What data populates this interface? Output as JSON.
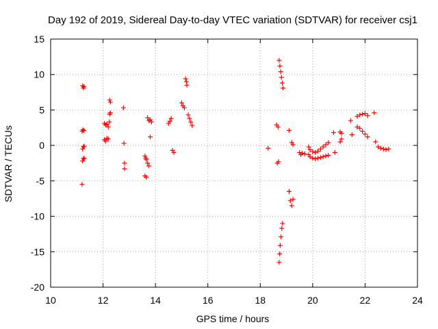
{
  "chart_data": {
    "type": "scatter",
    "title": "Day 192 of 2019, Sidereal Day-to-day VTEC variation (SDTVAR) for receiver csj1",
    "xlabel": "GPS time / hours",
    "ylabel": "SDTVAR / TECUs",
    "xlim": [
      10,
      24
    ],
    "ylim": [
      -20,
      15
    ],
    "xticks": [
      10,
      12,
      14,
      16,
      18,
      20,
      22,
      24
    ],
    "yticks": [
      -20,
      -15,
      -10,
      -5,
      0,
      5,
      10,
      15
    ],
    "xtick_labels": [
      "10",
      "12",
      "14",
      "16",
      "18",
      "20",
      "22",
      "24"
    ],
    "ytick_labels": [
      "-20",
      "-15",
      "-10",
      "-5",
      "0",
      "5",
      "10",
      "15"
    ],
    "grid": true,
    "marker": "plus",
    "marker_color": "#ff0000",
    "series": [
      {
        "name": "csj1",
        "points": [
          [
            11.22,
            8.4
          ],
          [
            11.25,
            8.1
          ],
          [
            11.27,
            8.3
          ],
          [
            11.2,
            2.0
          ],
          [
            11.23,
            2.2
          ],
          [
            11.27,
            2.1
          ],
          [
            11.22,
            -0.5
          ],
          [
            11.25,
            -0.2
          ],
          [
            11.28,
            -0.1
          ],
          [
            11.22,
            -2.2
          ],
          [
            11.25,
            -1.9
          ],
          [
            11.28,
            -1.8
          ],
          [
            11.2,
            -5.5
          ],
          [
            12.05,
            3.1
          ],
          [
            12.1,
            2.9
          ],
          [
            12.15,
            3.0
          ],
          [
            12.2,
            2.6
          ],
          [
            12.24,
            3.3
          ],
          [
            12.05,
            0.8
          ],
          [
            12.1,
            0.6
          ],
          [
            12.15,
            1.0
          ],
          [
            12.2,
            0.9
          ],
          [
            12.25,
            6.4
          ],
          [
            12.28,
            6.1
          ],
          [
            12.25,
            4.4
          ],
          [
            12.28,
            4.6
          ],
          [
            12.78,
            5.3
          ],
          [
            12.8,
            0.3
          ],
          [
            12.82,
            -2.5
          ],
          [
            12.82,
            -3.3
          ],
          [
            13.6,
            -1.5
          ],
          [
            13.63,
            -1.8
          ],
          [
            13.65,
            -2.0
          ],
          [
            13.6,
            -4.3
          ],
          [
            13.65,
            -4.5
          ],
          [
            13.7,
            -2.5
          ],
          [
            13.75,
            -2.9
          ],
          [
            13.7,
            3.9
          ],
          [
            13.75,
            3.5
          ],
          [
            13.8,
            3.6
          ],
          [
            13.85,
            3.3
          ],
          [
            13.8,
            1.2
          ],
          [
            14.5,
            3.1
          ],
          [
            14.55,
            3.4
          ],
          [
            14.6,
            3.8
          ],
          [
            14.65,
            -0.7
          ],
          [
            14.7,
            -1.0
          ],
          [
            15.0,
            6.0
          ],
          [
            15.05,
            5.6
          ],
          [
            15.1,
            5.3
          ],
          [
            15.15,
            9.4
          ],
          [
            15.18,
            9.0
          ],
          [
            15.2,
            8.5
          ],
          [
            15.25,
            4.3
          ],
          [
            15.3,
            3.8
          ],
          [
            15.35,
            3.3
          ],
          [
            15.4,
            2.8
          ],
          [
            18.3,
            -0.4
          ],
          [
            18.62,
            2.9
          ],
          [
            18.68,
            2.6
          ],
          [
            18.65,
            -2.5
          ],
          [
            18.7,
            -2.3
          ],
          [
            18.72,
            12.0
          ],
          [
            18.75,
            11.2
          ],
          [
            18.78,
            10.4
          ],
          [
            18.81,
            9.6
          ],
          [
            18.84,
            8.8
          ],
          [
            18.87,
            8.1
          ],
          [
            18.72,
            -16.5
          ],
          [
            18.74,
            -15.3
          ],
          [
            18.76,
            -14.1
          ],
          [
            18.79,
            -12.9
          ],
          [
            18.82,
            -11.7
          ],
          [
            18.85,
            -11.0
          ],
          [
            19.1,
            2.1
          ],
          [
            19.1,
            -6.5
          ],
          [
            19.15,
            -7.8
          ],
          [
            19.2,
            -8.5
          ],
          [
            19.25,
            -7.6
          ],
          [
            19.2,
            0.4
          ],
          [
            19.25,
            0.1
          ],
          [
            19.5,
            -1.0
          ],
          [
            19.55,
            -1.3
          ],
          [
            19.6,
            -1.1
          ],
          [
            19.7,
            -1.2
          ],
          [
            19.85,
            -0.2
          ],
          [
            19.9,
            -0.6
          ],
          [
            20.0,
            -0.9
          ],
          [
            20.1,
            -1.0
          ],
          [
            20.2,
            -0.8
          ],
          [
            20.3,
            -0.5
          ],
          [
            20.4,
            -0.2
          ],
          [
            20.5,
            0.1
          ],
          [
            20.6,
            0.4
          ],
          [
            19.85,
            -1.3
          ],
          [
            19.9,
            -1.6
          ],
          [
            20.0,
            -1.8
          ],
          [
            20.1,
            -1.9
          ],
          [
            20.2,
            -1.8
          ],
          [
            20.3,
            -1.7
          ],
          [
            20.4,
            -1.6
          ],
          [
            20.5,
            -1.5
          ],
          [
            20.6,
            -1.4
          ],
          [
            20.8,
            1.8
          ],
          [
            20.85,
            -1.0
          ],
          [
            21.05,
            1.9
          ],
          [
            21.1,
            1.7
          ],
          [
            21.05,
            0.5
          ],
          [
            21.1,
            0.9
          ],
          [
            21.45,
            3.5
          ],
          [
            21.5,
            1.5
          ],
          [
            21.7,
            4.1
          ],
          [
            21.8,
            4.3
          ],
          [
            21.9,
            4.4
          ],
          [
            22.0,
            4.5
          ],
          [
            22.1,
            4.2
          ],
          [
            21.7,
            2.6
          ],
          [
            21.8,
            2.4
          ],
          [
            21.9,
            2.0
          ],
          [
            22.0,
            1.6
          ],
          [
            22.1,
            1.2
          ],
          [
            22.35,
            4.6
          ],
          [
            22.4,
            0.5
          ],
          [
            22.5,
            -0.2
          ],
          [
            22.6,
            -0.4
          ],
          [
            22.7,
            -0.5
          ],
          [
            22.8,
            -0.6
          ],
          [
            22.9,
            -0.5
          ]
        ]
      }
    ]
  }
}
